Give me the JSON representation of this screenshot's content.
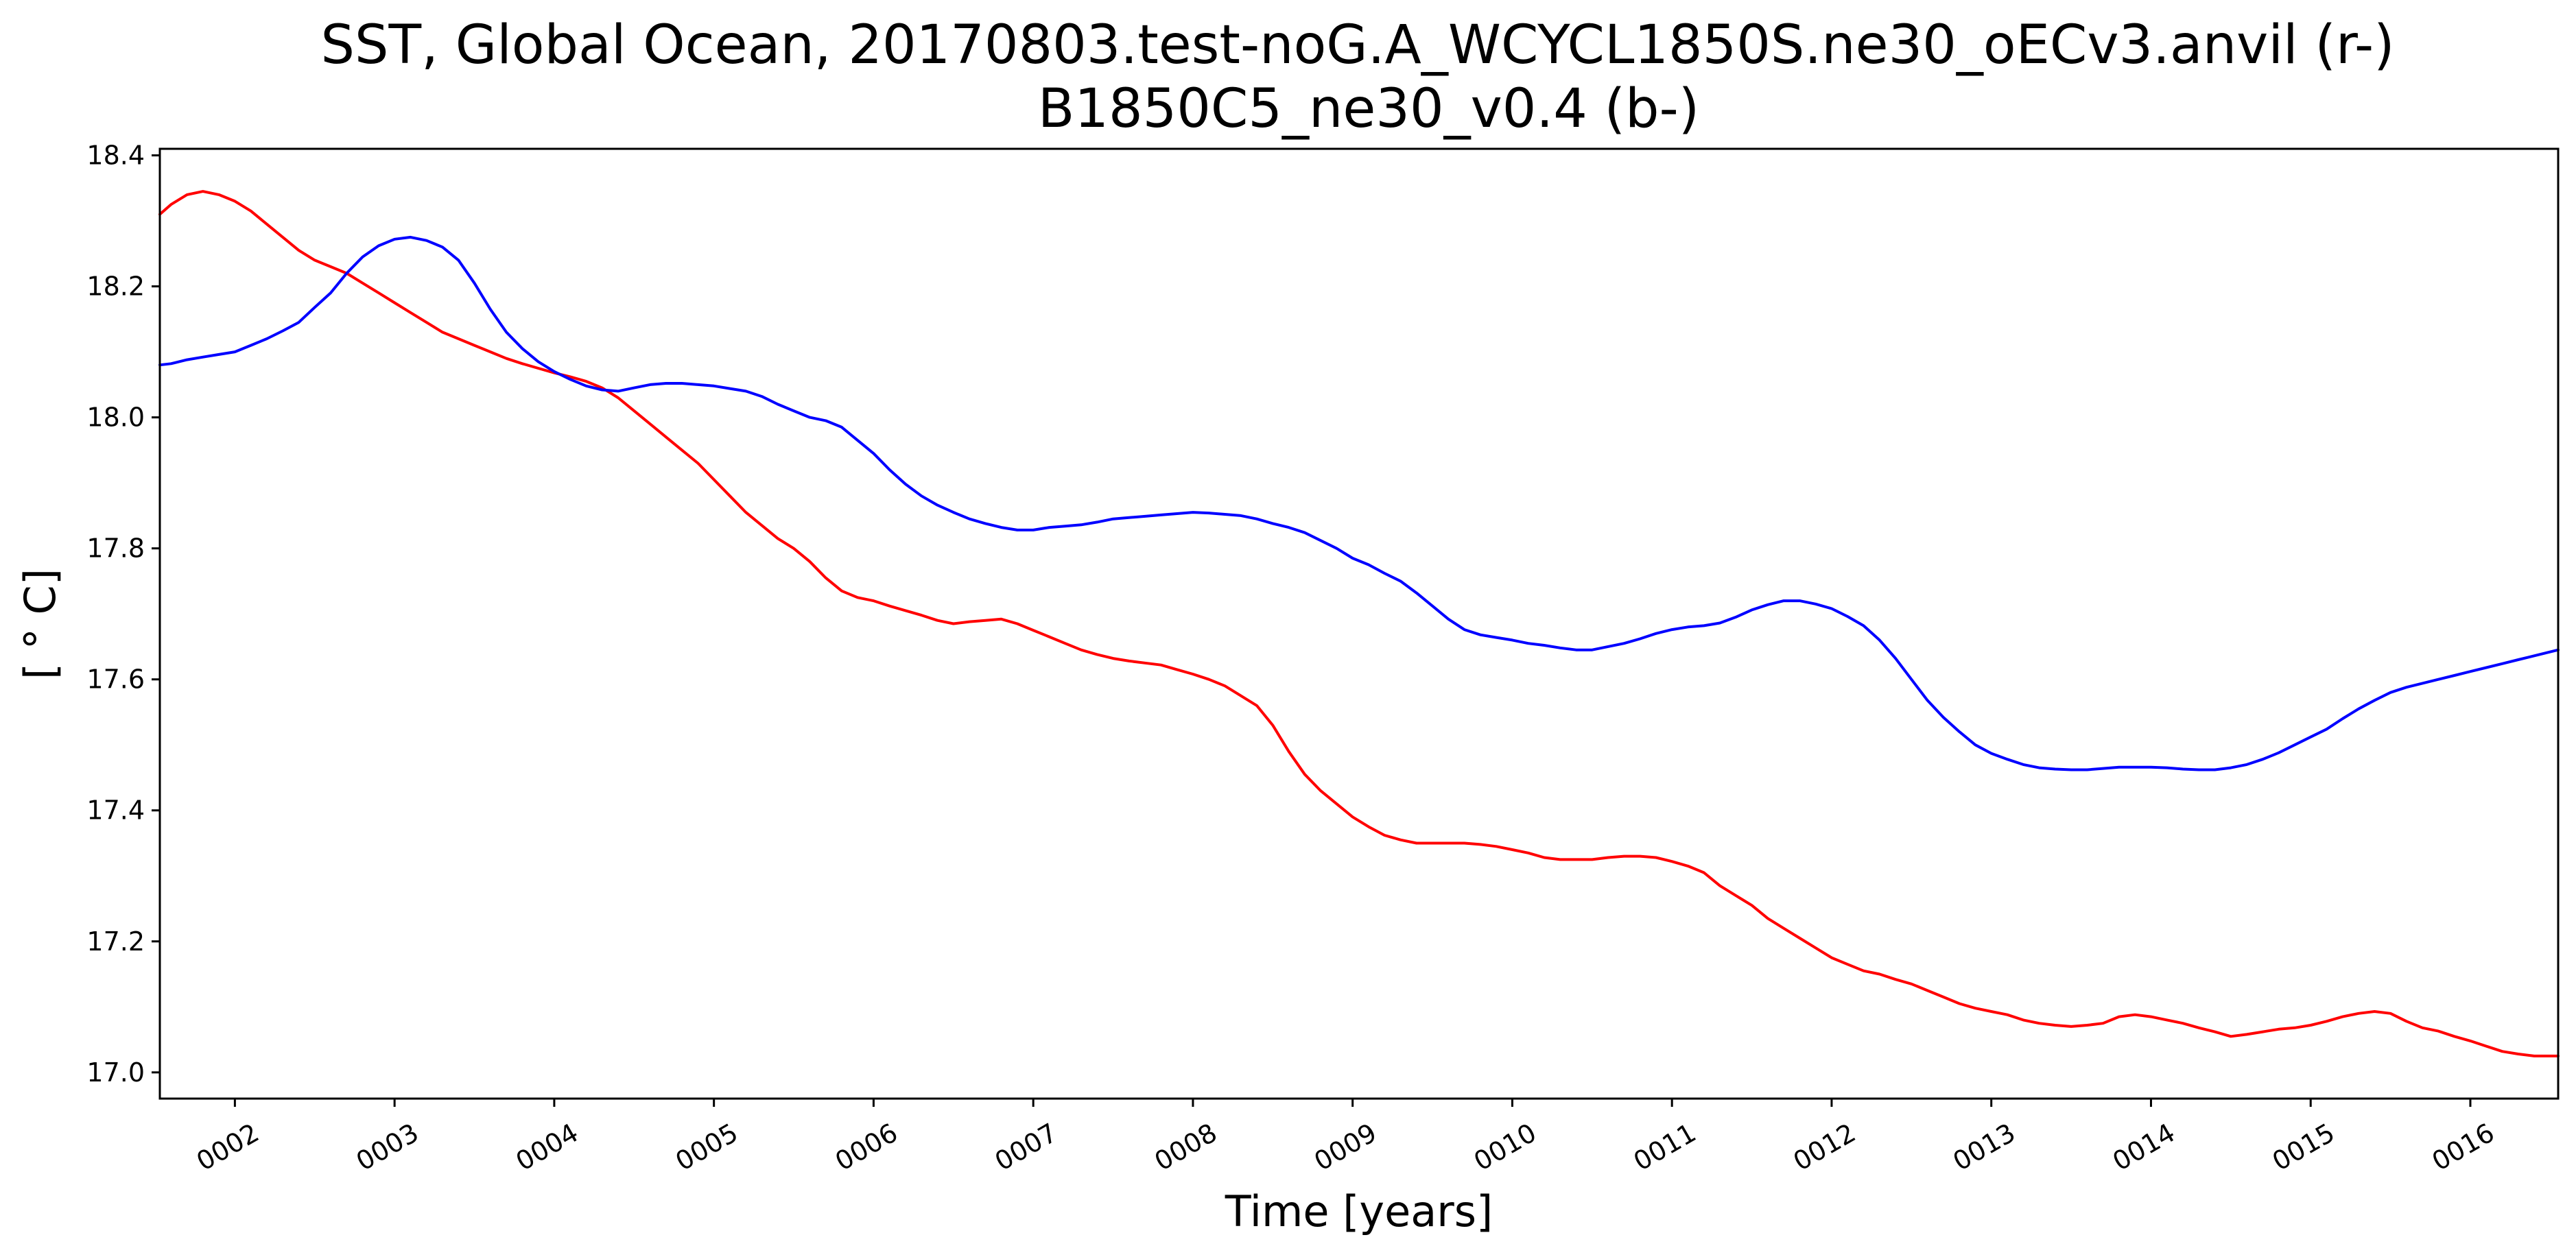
{
  "chart_data": {
    "type": "line",
    "title_line1": "SST, Global Ocean, 20170803.test-noG.A_WCYCL1850S.ne30_oECv3.anvil (r-)",
    "title_line2": "B1850C5_ne30_v0.4 (b-)",
    "xlabel": "Time [years]",
    "ylabel": "[ ° C]",
    "xlim": [
      1.53,
      16.55
    ],
    "ylim": [
      16.96,
      18.41
    ],
    "xticks": [
      2,
      3,
      4,
      5,
      6,
      7,
      8,
      9,
      10,
      11,
      12,
      13,
      14,
      15,
      16
    ],
    "xtick_labels": [
      "0002",
      "0003",
      "0004",
      "0005",
      "0006",
      "0007",
      "0008",
      "0009",
      "0010",
      "0011",
      "0012",
      "0013",
      "0014",
      "0015",
      "0016"
    ],
    "yticks": [
      17.0,
      17.2,
      17.4,
      17.6,
      17.8,
      18.0,
      18.2,
      18.4
    ],
    "ytick_labels": [
      "17.0",
      "17.2",
      "17.4",
      "17.6",
      "17.8",
      "18.0",
      "18.2",
      "18.4"
    ],
    "grid": false,
    "series": [
      {
        "color": "#ff0000",
        "points": [
          [
            1.53,
            18.31
          ],
          [
            1.6,
            18.325
          ],
          [
            1.7,
            18.34
          ],
          [
            1.8,
            18.345
          ],
          [
            1.9,
            18.34
          ],
          [
            2.0,
            18.33
          ],
          [
            2.1,
            18.315
          ],
          [
            2.2,
            18.295
          ],
          [
            2.3,
            18.275
          ],
          [
            2.4,
            18.255
          ],
          [
            2.5,
            18.24
          ],
          [
            2.6,
            18.23
          ],
          [
            2.7,
            18.22
          ],
          [
            2.8,
            18.205
          ],
          [
            2.9,
            18.19
          ],
          [
            3.0,
            18.175
          ],
          [
            3.1,
            18.16
          ],
          [
            3.2,
            18.145
          ],
          [
            3.3,
            18.13
          ],
          [
            3.4,
            18.12
          ],
          [
            3.5,
            18.11
          ],
          [
            3.6,
            18.1
          ],
          [
            3.7,
            18.09
          ],
          [
            3.8,
            18.082
          ],
          [
            3.9,
            18.075
          ],
          [
            4.0,
            18.068
          ],
          [
            4.1,
            18.062
          ],
          [
            4.2,
            18.055
          ],
          [
            4.3,
            18.045
          ],
          [
            4.4,
            18.03
          ],
          [
            4.5,
            18.01
          ],
          [
            4.6,
            17.99
          ],
          [
            4.7,
            17.97
          ],
          [
            4.8,
            17.95
          ],
          [
            4.9,
            17.93
          ],
          [
            5.0,
            17.905
          ],
          [
            5.1,
            17.88
          ],
          [
            5.2,
            17.855
          ],
          [
            5.3,
            17.835
          ],
          [
            5.4,
            17.815
          ],
          [
            5.5,
            17.8
          ],
          [
            5.6,
            17.78
          ],
          [
            5.7,
            17.755
          ],
          [
            5.8,
            17.735
          ],
          [
            5.9,
            17.725
          ],
          [
            6.0,
            17.72
          ],
          [
            6.1,
            17.712
          ],
          [
            6.2,
            17.705
          ],
          [
            6.3,
            17.698
          ],
          [
            6.4,
            17.69
          ],
          [
            6.5,
            17.685
          ],
          [
            6.6,
            17.688
          ],
          [
            6.7,
            17.69
          ],
          [
            6.8,
            17.692
          ],
          [
            6.9,
            17.685
          ],
          [
            7.0,
            17.675
          ],
          [
            7.1,
            17.665
          ],
          [
            7.2,
            17.655
          ],
          [
            7.3,
            17.645
          ],
          [
            7.4,
            17.638
          ],
          [
            7.5,
            17.632
          ],
          [
            7.6,
            17.628
          ],
          [
            7.7,
            17.625
          ],
          [
            7.8,
            17.622
          ],
          [
            7.9,
            17.615
          ],
          [
            8.0,
            17.608
          ],
          [
            8.1,
            17.6
          ],
          [
            8.2,
            17.59
          ],
          [
            8.3,
            17.575
          ],
          [
            8.4,
            17.56
          ],
          [
            8.5,
            17.53
          ],
          [
            8.6,
            17.49
          ],
          [
            8.7,
            17.455
          ],
          [
            8.8,
            17.43
          ],
          [
            8.9,
            17.41
          ],
          [
            9.0,
            17.39
          ],
          [
            9.1,
            17.375
          ],
          [
            9.2,
            17.362
          ],
          [
            9.3,
            17.355
          ],
          [
            9.4,
            17.35
          ],
          [
            9.5,
            17.35
          ],
          [
            9.6,
            17.35
          ],
          [
            9.7,
            17.35
          ],
          [
            9.8,
            17.348
          ],
          [
            9.9,
            17.345
          ],
          [
            10.0,
            17.34
          ],
          [
            10.1,
            17.335
          ],
          [
            10.2,
            17.328
          ],
          [
            10.3,
            17.325
          ],
          [
            10.4,
            17.325
          ],
          [
            10.5,
            17.325
          ],
          [
            10.6,
            17.328
          ],
          [
            10.7,
            17.33
          ],
          [
            10.8,
            17.33
          ],
          [
            10.9,
            17.328
          ],
          [
            11.0,
            17.322
          ],
          [
            11.1,
            17.315
          ],
          [
            11.2,
            17.305
          ],
          [
            11.3,
            17.285
          ],
          [
            11.4,
            17.27
          ],
          [
            11.5,
            17.255
          ],
          [
            11.6,
            17.235
          ],
          [
            11.7,
            17.22
          ],
          [
            11.8,
            17.205
          ],
          [
            11.9,
            17.19
          ],
          [
            12.0,
            17.175
          ],
          [
            12.1,
            17.165
          ],
          [
            12.2,
            17.155
          ],
          [
            12.3,
            17.15
          ],
          [
            12.4,
            17.142
          ],
          [
            12.5,
            17.135
          ],
          [
            12.6,
            17.125
          ],
          [
            12.7,
            17.115
          ],
          [
            12.8,
            17.105
          ],
          [
            12.9,
            17.098
          ],
          [
            13.0,
            17.093
          ],
          [
            13.1,
            17.088
          ],
          [
            13.2,
            17.08
          ],
          [
            13.3,
            17.075
          ],
          [
            13.4,
            17.072
          ],
          [
            13.5,
            17.07
          ],
          [
            13.6,
            17.072
          ],
          [
            13.7,
            17.075
          ],
          [
            13.8,
            17.085
          ],
          [
            13.9,
            17.088
          ],
          [
            14.0,
            17.085
          ],
          [
            14.1,
            17.08
          ],
          [
            14.2,
            17.075
          ],
          [
            14.3,
            17.068
          ],
          [
            14.4,
            17.062
          ],
          [
            14.5,
            17.055
          ],
          [
            14.6,
            17.058
          ],
          [
            14.7,
            17.062
          ],
          [
            14.8,
            17.066
          ],
          [
            14.9,
            17.068
          ],
          [
            15.0,
            17.072
          ],
          [
            15.1,
            17.078
          ],
          [
            15.2,
            17.085
          ],
          [
            15.3,
            17.09
          ],
          [
            15.4,
            17.093
          ],
          [
            15.5,
            17.09
          ],
          [
            15.6,
            17.078
          ],
          [
            15.7,
            17.068
          ],
          [
            15.8,
            17.063
          ],
          [
            15.9,
            17.055
          ],
          [
            16.0,
            17.048
          ],
          [
            16.1,
            17.04
          ],
          [
            16.2,
            17.032
          ],
          [
            16.3,
            17.028
          ],
          [
            16.4,
            17.025
          ],
          [
            16.55,
            17.025
          ]
        ]
      },
      {
        "color": "#0000ff",
        "points": [
          [
            1.53,
            18.08
          ],
          [
            1.6,
            18.082
          ],
          [
            1.7,
            18.088
          ],
          [
            1.8,
            18.092
          ],
          [
            1.9,
            18.096
          ],
          [
            2.0,
            18.1
          ],
          [
            2.1,
            18.11
          ],
          [
            2.2,
            18.12
          ],
          [
            2.3,
            18.132
          ],
          [
            2.4,
            18.145
          ],
          [
            2.5,
            18.168
          ],
          [
            2.6,
            18.19
          ],
          [
            2.7,
            18.22
          ],
          [
            2.8,
            18.245
          ],
          [
            2.9,
            18.262
          ],
          [
            3.0,
            18.272
          ],
          [
            3.1,
            18.275
          ],
          [
            3.2,
            18.27
          ],
          [
            3.3,
            18.26
          ],
          [
            3.4,
            18.24
          ],
          [
            3.5,
            18.205
          ],
          [
            3.6,
            18.165
          ],
          [
            3.7,
            18.13
          ],
          [
            3.8,
            18.105
          ],
          [
            3.9,
            18.085
          ],
          [
            4.0,
            18.07
          ],
          [
            4.1,
            18.058
          ],
          [
            4.2,
            18.048
          ],
          [
            4.3,
            18.042
          ],
          [
            4.4,
            18.04
          ],
          [
            4.5,
            18.045
          ],
          [
            4.6,
            18.05
          ],
          [
            4.7,
            18.052
          ],
          [
            4.8,
            18.052
          ],
          [
            4.9,
            18.05
          ],
          [
            5.0,
            18.048
          ],
          [
            5.1,
            18.044
          ],
          [
            5.2,
            18.04
          ],
          [
            5.3,
            18.032
          ],
          [
            5.4,
            18.02
          ],
          [
            5.5,
            18.01
          ],
          [
            5.6,
            18.0
          ],
          [
            5.7,
            17.995
          ],
          [
            5.8,
            17.985
          ],
          [
            5.9,
            17.965
          ],
          [
            6.0,
            17.945
          ],
          [
            6.1,
            17.92
          ],
          [
            6.2,
            17.898
          ],
          [
            6.3,
            17.88
          ],
          [
            6.4,
            17.866
          ],
          [
            6.5,
            17.855
          ],
          [
            6.6,
            17.845
          ],
          [
            6.7,
            17.838
          ],
          [
            6.8,
            17.832
          ],
          [
            6.9,
            17.828
          ],
          [
            7.0,
            17.828
          ],
          [
            7.1,
            17.832
          ],
          [
            7.2,
            17.834
          ],
          [
            7.3,
            17.836
          ],
          [
            7.4,
            17.84
          ],
          [
            7.5,
            17.845
          ],
          [
            7.6,
            17.847
          ],
          [
            7.7,
            17.849
          ],
          [
            7.8,
            17.851
          ],
          [
            7.9,
            17.853
          ],
          [
            8.0,
            17.855
          ],
          [
            8.1,
            17.854
          ],
          [
            8.2,
            17.852
          ],
          [
            8.3,
            17.85
          ],
          [
            8.4,
            17.845
          ],
          [
            8.5,
            17.838
          ],
          [
            8.6,
            17.832
          ],
          [
            8.7,
            17.824
          ],
          [
            8.8,
            17.812
          ],
          [
            8.9,
            17.8
          ],
          [
            9.0,
            17.785
          ],
          [
            9.1,
            17.775
          ],
          [
            9.2,
            17.762
          ],
          [
            9.3,
            17.75
          ],
          [
            9.4,
            17.732
          ],
          [
            9.5,
            17.712
          ],
          [
            9.6,
            17.692
          ],
          [
            9.7,
            17.676
          ],
          [
            9.8,
            17.668
          ],
          [
            9.9,
            17.664
          ],
          [
            10.0,
            17.66
          ],
          [
            10.1,
            17.655
          ],
          [
            10.2,
            17.652
          ],
          [
            10.3,
            17.648
          ],
          [
            10.4,
            17.645
          ],
          [
            10.5,
            17.645
          ],
          [
            10.6,
            17.65
          ],
          [
            10.7,
            17.655
          ],
          [
            10.8,
            17.662
          ],
          [
            10.9,
            17.67
          ],
          [
            11.0,
            17.676
          ],
          [
            11.1,
            17.68
          ],
          [
            11.2,
            17.682
          ],
          [
            11.3,
            17.686
          ],
          [
            11.4,
            17.695
          ],
          [
            11.5,
            17.706
          ],
          [
            11.6,
            17.714
          ],
          [
            11.7,
            17.72
          ],
          [
            11.8,
            17.72
          ],
          [
            11.9,
            17.715
          ],
          [
            12.0,
            17.708
          ],
          [
            12.1,
            17.696
          ],
          [
            12.2,
            17.682
          ],
          [
            12.3,
            17.66
          ],
          [
            12.4,
            17.632
          ],
          [
            12.5,
            17.6
          ],
          [
            12.6,
            17.568
          ],
          [
            12.7,
            17.542
          ],
          [
            12.8,
            17.52
          ],
          [
            12.9,
            17.5
          ],
          [
            13.0,
            17.487
          ],
          [
            13.1,
            17.478
          ],
          [
            13.2,
            17.47
          ],
          [
            13.3,
            17.465
          ],
          [
            13.4,
            17.463
          ],
          [
            13.5,
            17.462
          ],
          [
            13.6,
            17.462
          ],
          [
            13.7,
            17.464
          ],
          [
            13.8,
            17.466
          ],
          [
            13.9,
            17.466
          ],
          [
            14.0,
            17.466
          ],
          [
            14.1,
            17.465
          ],
          [
            14.2,
            17.463
          ],
          [
            14.3,
            17.462
          ],
          [
            14.4,
            17.462
          ],
          [
            14.5,
            17.465
          ],
          [
            14.6,
            17.47
          ],
          [
            14.7,
            17.478
          ],
          [
            14.8,
            17.488
          ],
          [
            14.9,
            17.5
          ],
          [
            15.0,
            17.512
          ],
          [
            15.1,
            17.524
          ],
          [
            15.2,
            17.54
          ],
          [
            15.3,
            17.555
          ],
          [
            15.4,
            17.568
          ],
          [
            15.5,
            17.58
          ],
          [
            15.6,
            17.588
          ],
          [
            15.7,
            17.594
          ],
          [
            15.8,
            17.6
          ],
          [
            15.9,
            17.606
          ],
          [
            16.0,
            17.612
          ],
          [
            16.1,
            17.618
          ],
          [
            16.2,
            17.624
          ],
          [
            16.3,
            17.63
          ],
          [
            16.4,
            17.636
          ],
          [
            16.55,
            17.645
          ]
        ]
      }
    ]
  }
}
